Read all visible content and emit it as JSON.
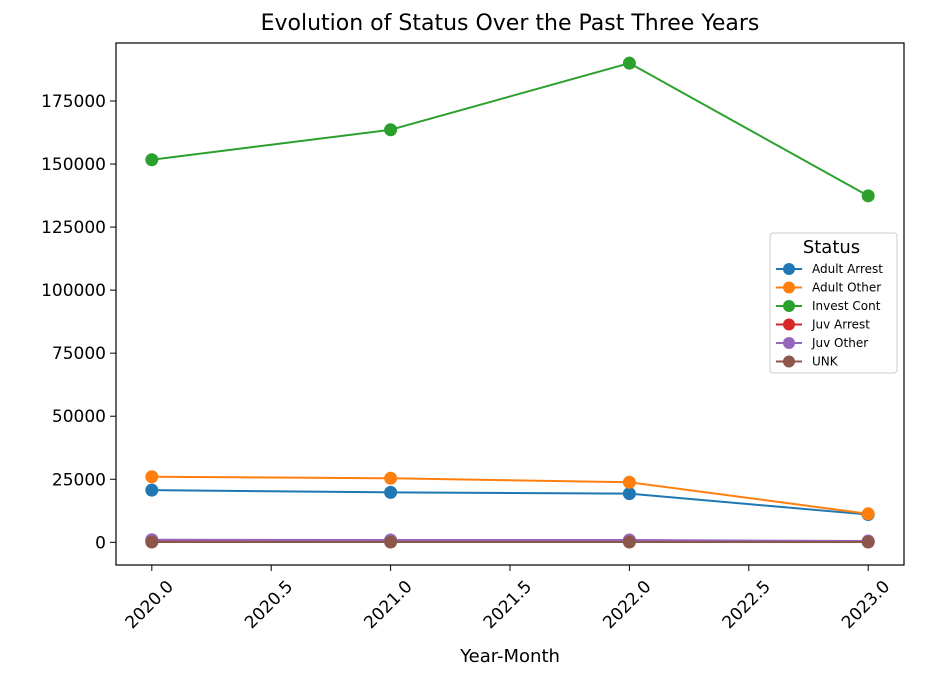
{
  "chart_data": {
    "type": "line",
    "title": "Evolution of Status Over the Past Three Years",
    "xlabel": "Year-Month",
    "ylabel": "",
    "x": [
      2020,
      2021,
      2022,
      2023
    ],
    "xlim": [
      2019.85,
      2023.15
    ],
    "ylim": [
      -9000,
      198000
    ],
    "xticks": [
      2020.0,
      2020.5,
      2021.0,
      2021.5,
      2022.0,
      2022.5,
      2023.0
    ],
    "xtick_labels": [
      "2020.0",
      "2020.5",
      "2021.0",
      "2021.5",
      "2022.0",
      "2022.5",
      "2023.0"
    ],
    "yticks": [
      0,
      25000,
      50000,
      75000,
      100000,
      125000,
      150000,
      175000
    ],
    "ytick_labels": [
      "0",
      "25000",
      "50000",
      "75000",
      "100000",
      "125000",
      "150000",
      "175000"
    ],
    "grid": false,
    "legend": {
      "title": "Status",
      "placement": "center-right"
    },
    "series": [
      {
        "name": "Adult Arrest",
        "color": "#1f77b4",
        "values": [
          20700,
          19800,
          19300,
          11000
        ]
      },
      {
        "name": "Adult Other",
        "color": "#ff7f0e",
        "values": [
          26000,
          25400,
          23800,
          11300
        ]
      },
      {
        "name": "Invest Cont",
        "color": "#2ca02c",
        "values": [
          151700,
          163600,
          190000,
          137400
        ]
      },
      {
        "name": "Juv Arrest",
        "color": "#d62728",
        "values": [
          700,
          600,
          600,
          300
        ]
      },
      {
        "name": "Juv Other",
        "color": "#9467bd",
        "values": [
          1000,
          900,
          900,
          500
        ]
      },
      {
        "name": "UNK",
        "color": "#8c564b",
        "values": [
          100,
          100,
          100,
          100
        ]
      }
    ]
  }
}
